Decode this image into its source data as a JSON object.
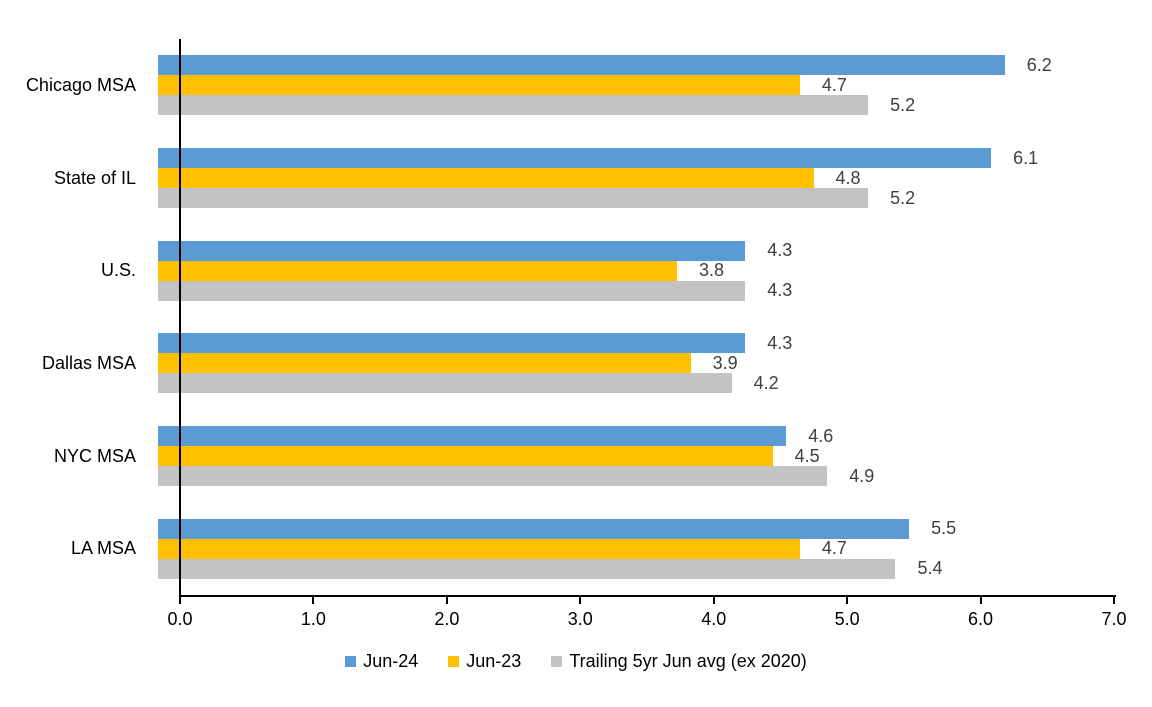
{
  "chart_data": {
    "type": "bar",
    "orientation": "horizontal",
    "title": "",
    "xlabel": "",
    "ylabel": "",
    "categories": [
      "Chicago MSA",
      "State of IL",
      "U.S.",
      "Dallas MSA",
      "NYC MSA",
      "LA MSA"
    ],
    "series": [
      {
        "name": "Jun-24",
        "color": "#5B9BD5",
        "values": [
          6.2,
          6.1,
          4.3,
          4.3,
          4.6,
          5.5
        ]
      },
      {
        "name": "Jun-23",
        "color": "#FFC000",
        "values": [
          4.7,
          4.8,
          3.8,
          3.9,
          4.5,
          4.7
        ]
      },
      {
        "name": "Trailing 5yr Jun avg (ex 2020)",
        "color": "#C3C3C3",
        "values": [
          5.2,
          5.2,
          4.3,
          4.2,
          4.9,
          5.4
        ]
      }
    ],
    "xlim": [
      0,
      7
    ],
    "x_ticks": [
      "0.0",
      "1.0",
      "2.0",
      "3.0",
      "4.0",
      "5.0",
      "6.0",
      "7.0"
    ],
    "grid": false,
    "data_labels": true,
    "data_label_color": "#404040",
    "axis_color": "#000000",
    "legend_position": "bottom"
  }
}
